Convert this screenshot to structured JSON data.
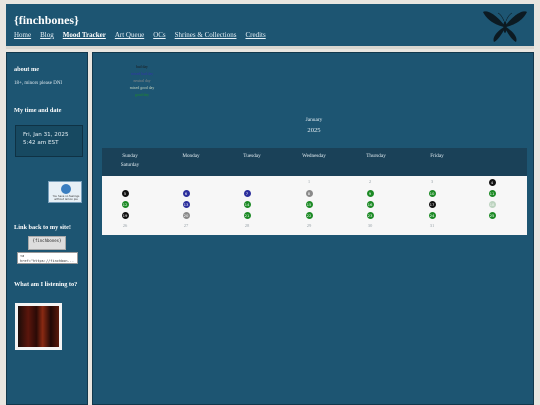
{
  "header": {
    "site_title": "{finchbones}",
    "nav": [
      "Home",
      "Blog",
      "Mood Tracker",
      "Art Queue",
      "OCs",
      "Shrines & Collections",
      "Credits"
    ],
    "active_nav": "Mood Tracker"
  },
  "sidebar": {
    "about_heading": "about me",
    "about_text": "18+, minors please DNI",
    "time_heading": "My time and date",
    "date_line": "Fri, Jan 31, 2025",
    "time_line": "5:42 am EST",
    "stamp_text": "You have no feelings without lemon pie",
    "link_heading": "Link back to my site!",
    "button_label": "{finchbones}",
    "code_snippet": "<a href=\"https://finchbon...",
    "music_heading": "What am I listening to?"
  },
  "legend": [
    {
      "label": "bad day",
      "color": "#1a1a1a"
    },
    {
      "label": "mixed bad day",
      "color": "#3236a8"
    },
    {
      "label": "neutral day",
      "color": "#8a8a8a"
    },
    {
      "label": "mixed good day",
      "color": "#c9d6c0"
    },
    {
      "label": "good day",
      "color": "#1e8c24"
    }
  ],
  "calendar": {
    "month": "January",
    "year": "2025",
    "weekdays": [
      "Sunday",
      "Monday",
      "Tuesday",
      "Wednesday",
      "Thursday",
      "Friday",
      "Saturday"
    ]
  },
  "days": [
    {
      "n": 1,
      "mood": null
    },
    {
      "n": 2,
      "mood": null
    },
    {
      "n": 3,
      "mood": null
    },
    {
      "n": 4,
      "mood": "bad"
    },
    {
      "n": 5,
      "mood": "bad"
    },
    {
      "n": 6,
      "mood": "mixed-bad"
    },
    {
      "n": 7,
      "mood": "mixed-bad"
    },
    {
      "n": 8,
      "mood": "neutral"
    },
    {
      "n": 9,
      "mood": "good"
    },
    {
      "n": 10,
      "mood": "good"
    },
    {
      "n": 11,
      "mood": "good"
    },
    {
      "n": 12,
      "mood": "good"
    },
    {
      "n": 13,
      "mood": "mixed-bad"
    },
    {
      "n": 14,
      "mood": "good"
    },
    {
      "n": 15,
      "mood": "good"
    },
    {
      "n": 16,
      "mood": "good"
    },
    {
      "n": 17,
      "mood": "bad"
    },
    {
      "n": 18,
      "mood": "mixed-good"
    },
    {
      "n": 19,
      "mood": "bad"
    },
    {
      "n": 20,
      "mood": "neutral"
    },
    {
      "n": 21,
      "mood": "good"
    },
    {
      "n": 22,
      "mood": "good"
    },
    {
      "n": 23,
      "mood": "good"
    },
    {
      "n": 24,
      "mood": "good"
    },
    {
      "n": 25,
      "mood": "good"
    },
    {
      "n": 26,
      "mood": null
    },
    {
      "n": 27,
      "mood": null
    },
    {
      "n": 28,
      "mood": null
    },
    {
      "n": 29,
      "mood": null
    },
    {
      "n": 30,
      "mood": null
    },
    {
      "n": 31,
      "mood": null
    }
  ],
  "mood_colors": {
    "bad": "#111111",
    "mixed-bad": "#2c2f9c",
    "neutral": "#8a8a8a",
    "mixed-good": "#bcd3bf",
    "good": "#1c8a25"
  },
  "icons": {
    "header_art": "moth-icon",
    "music": "album-cover"
  }
}
